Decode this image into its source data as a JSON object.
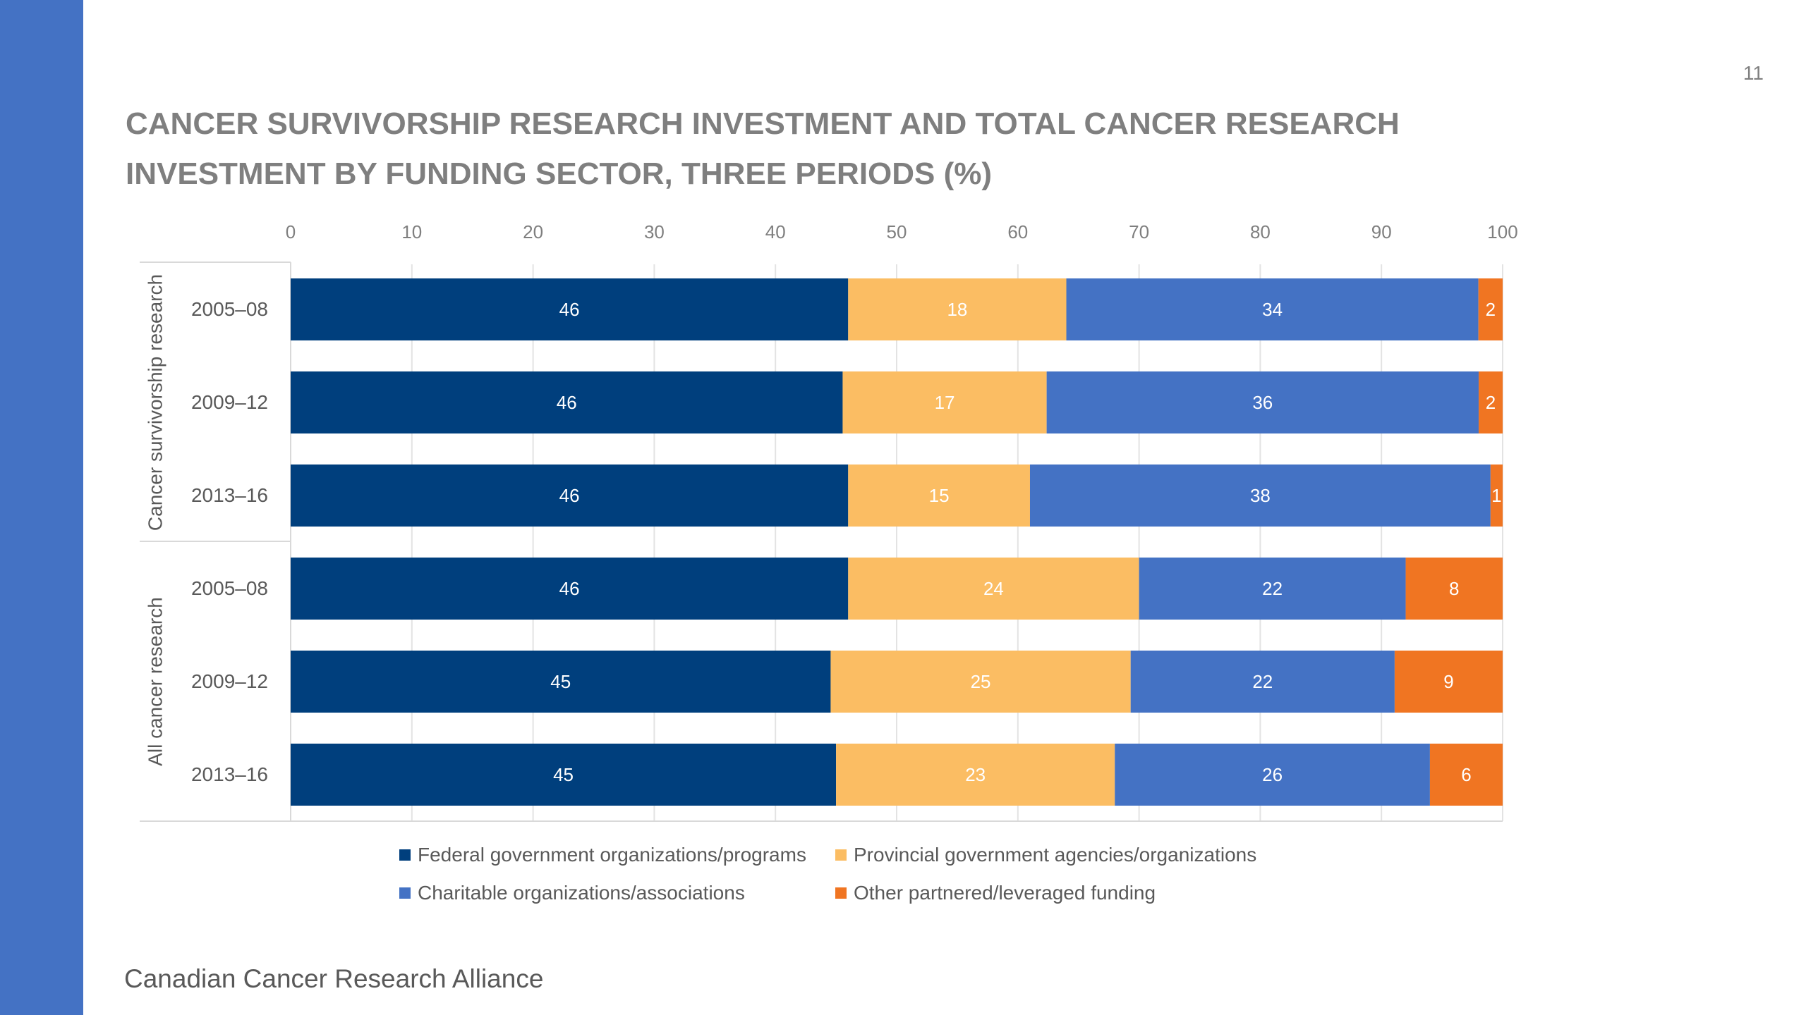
{
  "page_number": "11",
  "title_lines": [
    "CANCER SURVIVORSHIP RESEARCH INVESTMENT AND TOTAL CANCER RESEARCH",
    "INVESTMENT BY FUNDING SECTOR, THREE PERIODS (%)"
  ],
  "footer": "Canadian Cancer Research Alliance",
  "colors": {
    "federal": "#003f7d",
    "provincial": "#fbbd63",
    "charitable": "#4472c4",
    "other": "#f07522",
    "sidebar": "#4472c4"
  },
  "chart_data": {
    "type": "bar",
    "orientation": "horizontal",
    "stacked": true,
    "xlim": [
      0,
      100
    ],
    "x_ticks": [
      "0",
      "10",
      "20",
      "30",
      "40",
      "50",
      "60",
      "70",
      "80",
      "90",
      "100"
    ],
    "x_axis_position": "top",
    "grid": true,
    "groups": [
      {
        "label": "Cancer survivorship research",
        "categories": [
          "2005–08",
          "2009–12",
          "2013–16"
        ]
      },
      {
        "label": "All cancer research",
        "categories": [
          "2005–08",
          "2009–12",
          "2013–16"
        ]
      }
    ],
    "series": [
      {
        "name": "Federal government organizations/programs",
        "color_key": "federal",
        "values": [
          46,
          46,
          46,
          46,
          45,
          45
        ],
        "labels": [
          "46",
          "46",
          "46",
          "46",
          "45",
          "45"
        ]
      },
      {
        "name": "Provincial government agencies/organizations",
        "color_key": "provincial",
        "values": [
          18,
          17,
          15,
          24,
          25,
          23
        ],
        "labels": [
          "18",
          "17",
          "15",
          "24",
          "25",
          "23"
        ]
      },
      {
        "name": "Charitable organizations/associations",
        "color_key": "charitable",
        "values": [
          34,
          36,
          38,
          22,
          22,
          26
        ],
        "labels": [
          "34",
          "36",
          "38",
          "22",
          "22",
          "26"
        ]
      },
      {
        "name": "Other partnered/leveraged funding",
        "color_key": "other",
        "values": [
          2,
          2,
          1,
          8,
          9,
          6
        ],
        "labels": [
          "2",
          "2",
          "1",
          "8",
          "9",
          "6"
        ]
      }
    ],
    "legend_position": "bottom"
  }
}
